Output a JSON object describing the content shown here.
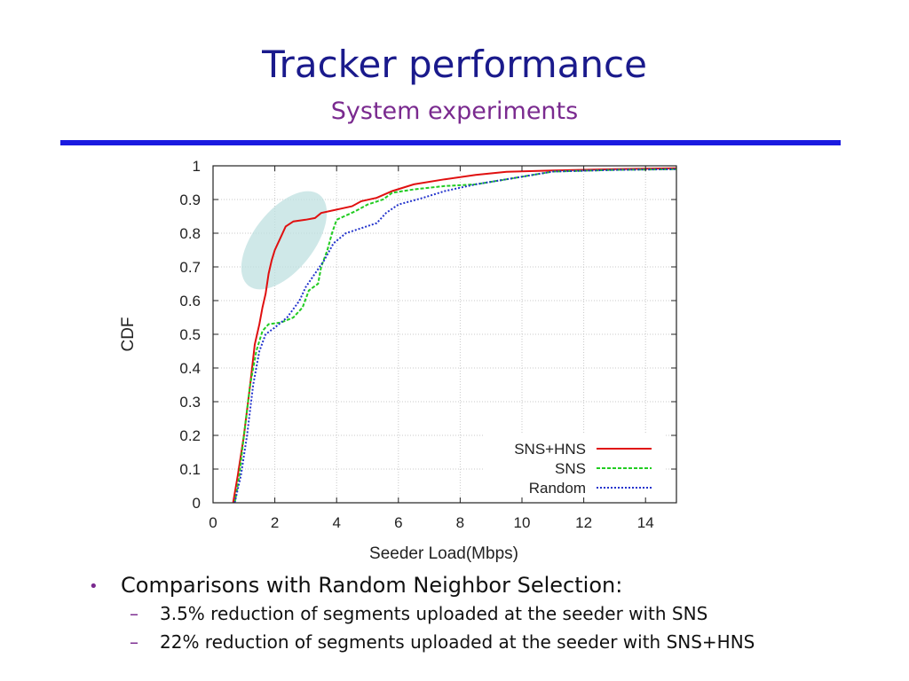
{
  "slide": {
    "title": "Tracker performance",
    "subtitle": "System experiments"
  },
  "bullets": {
    "main": "Comparisons with Random Neighbor Selection:",
    "sub": [
      "3.5% reduction of segments uploaded at the seeder with SNS",
      "22% reduction of segments uploaded at the seeder with SNS+HNS"
    ],
    "bullet_marker": "•",
    "sub_marker": "–"
  },
  "chart_data": {
    "type": "line",
    "xlabel": "Seeder Load(Mbps)",
    "ylabel": "CDF",
    "xlim": [
      0,
      15
    ],
    "ylim": [
      0,
      1
    ],
    "xticks": [
      "0",
      "2",
      "4",
      "6",
      "8",
      "10",
      "12",
      "14"
    ],
    "yticks": [
      "0",
      "0.1",
      "0.2",
      "0.3",
      "0.4",
      "0.5",
      "0.6",
      "0.7",
      "0.8",
      "0.9",
      "1"
    ],
    "grid": true,
    "legend_position": "bottom-right",
    "highlight": {
      "description": "shaded ellipse over SNS+HNS knee",
      "color": "#bfe0e0"
    },
    "series": [
      {
        "name": "SNS+HNS",
        "color": "#e01010",
        "style": "solid",
        "points": [
          [
            0.65,
            0
          ],
          [
            0.8,
            0.08
          ],
          [
            1.0,
            0.2
          ],
          [
            1.2,
            0.35
          ],
          [
            1.35,
            0.47
          ],
          [
            1.5,
            0.53
          ],
          [
            1.6,
            0.58
          ],
          [
            1.7,
            0.62
          ],
          [
            1.8,
            0.68
          ],
          [
            1.9,
            0.72
          ],
          [
            2.0,
            0.75
          ],
          [
            2.2,
            0.79
          ],
          [
            2.35,
            0.82
          ],
          [
            2.6,
            0.835
          ],
          [
            3.0,
            0.84
          ],
          [
            3.3,
            0.845
          ],
          [
            3.5,
            0.86
          ],
          [
            4.0,
            0.87
          ],
          [
            4.5,
            0.88
          ],
          [
            4.8,
            0.895
          ],
          [
            5.3,
            0.905
          ],
          [
            5.8,
            0.925
          ],
          [
            6.5,
            0.945
          ],
          [
            7.5,
            0.96
          ],
          [
            8.5,
            0.973
          ],
          [
            9.5,
            0.982
          ],
          [
            11,
            0.986
          ],
          [
            13,
            0.99
          ],
          [
            15,
            0.993
          ]
        ]
      },
      {
        "name": "SNS",
        "color": "#22cc22",
        "style": "dashed",
        "points": [
          [
            0.7,
            0
          ],
          [
            0.85,
            0.08
          ],
          [
            1.0,
            0.2
          ],
          [
            1.2,
            0.35
          ],
          [
            1.4,
            0.45
          ],
          [
            1.6,
            0.51
          ],
          [
            1.8,
            0.53
          ],
          [
            2.2,
            0.535
          ],
          [
            2.6,
            0.55
          ],
          [
            2.9,
            0.58
          ],
          [
            3.1,
            0.63
          ],
          [
            3.4,
            0.65
          ],
          [
            3.5,
            0.7
          ],
          [
            3.7,
            0.75
          ],
          [
            3.85,
            0.8
          ],
          [
            4.0,
            0.84
          ],
          [
            4.6,
            0.865
          ],
          [
            5.0,
            0.885
          ],
          [
            5.5,
            0.9
          ],
          [
            5.8,
            0.92
          ],
          [
            6.5,
            0.93
          ],
          [
            7.5,
            0.94
          ],
          [
            8.5,
            0.945
          ],
          [
            9.5,
            0.96
          ],
          [
            11,
            0.983
          ],
          [
            13,
            0.988
          ],
          [
            15,
            0.99
          ]
        ]
      },
      {
        "name": "Random",
        "color": "#2233cc",
        "style": "dotted",
        "points": [
          [
            0.7,
            0
          ],
          [
            0.9,
            0.08
          ],
          [
            1.1,
            0.2
          ],
          [
            1.3,
            0.35
          ],
          [
            1.5,
            0.45
          ],
          [
            1.7,
            0.5
          ],
          [
            2.0,
            0.52
          ],
          [
            2.4,
            0.55
          ],
          [
            2.8,
            0.6
          ],
          [
            3.0,
            0.64
          ],
          [
            3.3,
            0.68
          ],
          [
            3.6,
            0.72
          ],
          [
            3.9,
            0.77
          ],
          [
            4.3,
            0.8
          ],
          [
            4.8,
            0.815
          ],
          [
            5.3,
            0.83
          ],
          [
            5.6,
            0.86
          ],
          [
            6.0,
            0.885
          ],
          [
            6.8,
            0.905
          ],
          [
            7.5,
            0.925
          ],
          [
            8.5,
            0.945
          ],
          [
            9.5,
            0.96
          ],
          [
            11,
            0.983
          ],
          [
            13,
            0.988
          ],
          [
            15,
            0.99
          ]
        ]
      }
    ]
  }
}
